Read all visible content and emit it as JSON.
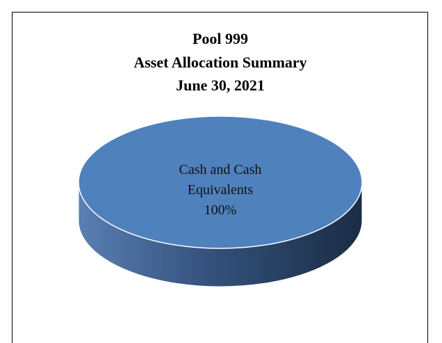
{
  "chart_data": {
    "type": "pie",
    "title": [
      "Pool 999",
      "Asset Allocation Summary",
      "June 30, 2021"
    ],
    "categories": [
      "Cash and Cash Equivalents"
    ],
    "values": [
      100
    ],
    "value_labels": [
      "100%"
    ],
    "colors": [
      "#4f81bd"
    ]
  }
}
